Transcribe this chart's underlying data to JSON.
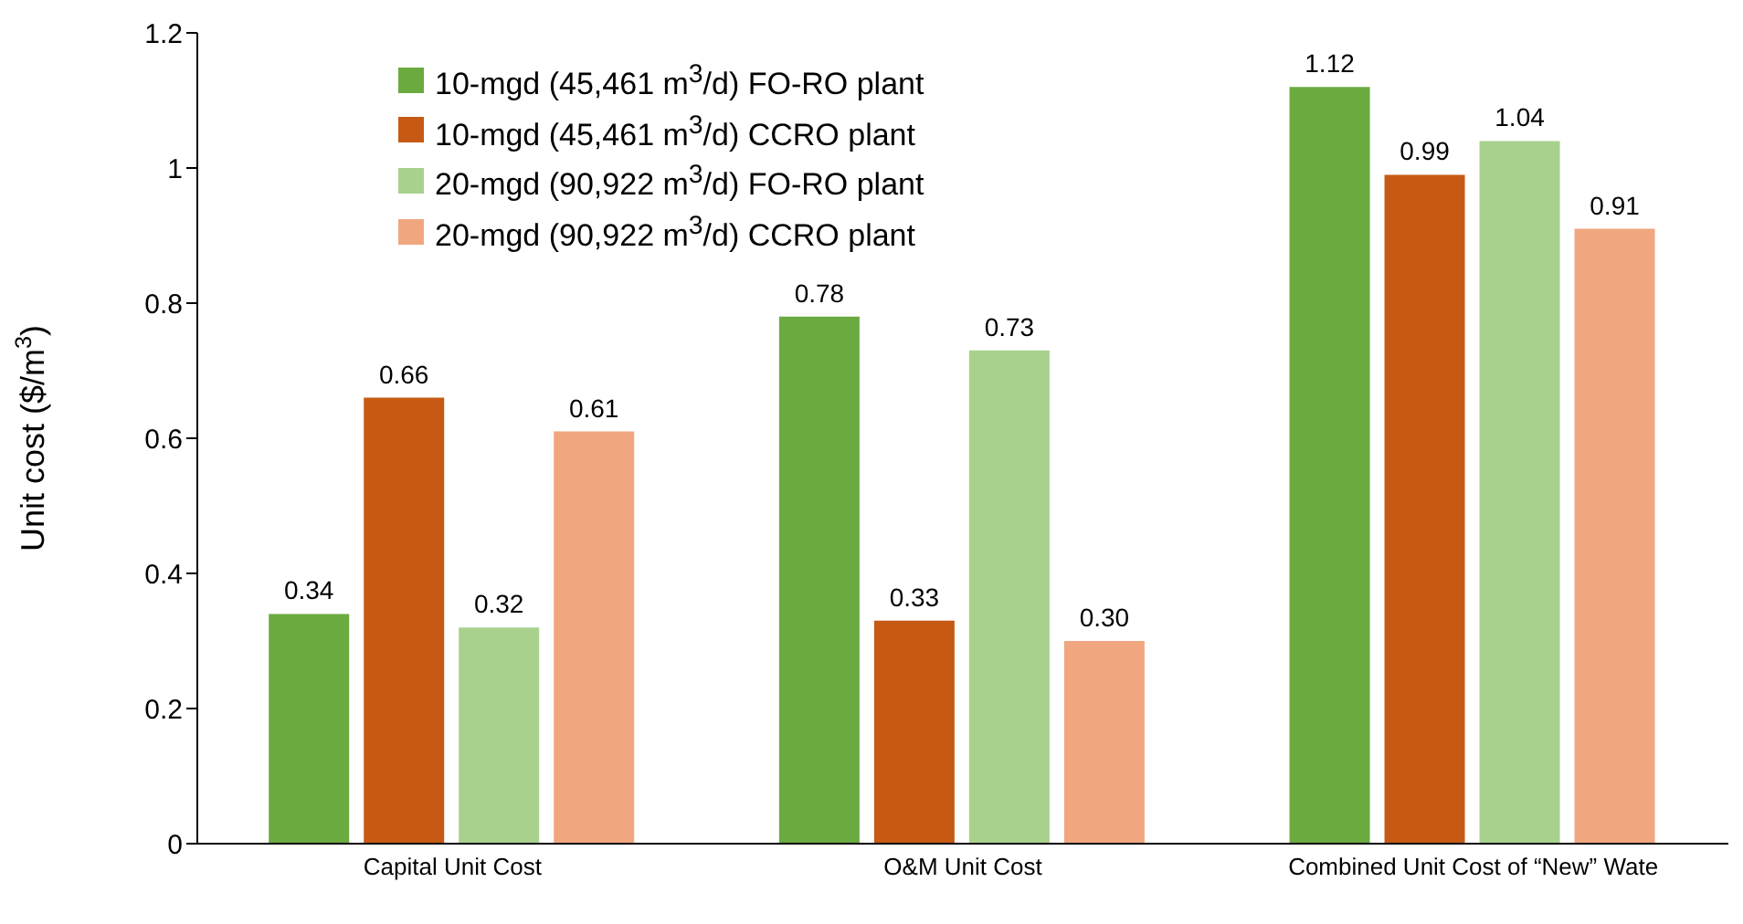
{
  "chart_data": {
    "type": "bar",
    "ylabel": "Unit cost ($/m$^{3}$)",
    "categories": [
      "Capital Unit Cost",
      "O&M Unit Cost",
      "Combined Unit Cost of “New” Wate"
    ],
    "series": [
      {
        "name": "10-mgd (45,461 m$^{3}$/d) FO-RO plant",
        "color": "#6aaa3f",
        "values": [
          0.34,
          0.78,
          1.12
        ],
        "value_labels": [
          "0.34",
          "0.78",
          "1.12"
        ]
      },
      {
        "name": "10-mgd (45,461 m$^{3}$/d) CCRO plant",
        "color": "#c65a14",
        "values": [
          0.66,
          0.33,
          0.99
        ],
        "value_labels": [
          "0.66",
          "0.33",
          "0.99"
        ]
      },
      {
        "name": "20-mgd (90,922 m$^{3}$/d) FO-RO plant",
        "color": "#a9d18e",
        "values": [
          0.32,
          0.73,
          1.04
        ],
        "value_labels": [
          "0.32",
          "0.73",
          "1.04"
        ]
      },
      {
        "name": "20-mgd (90,922 m$^{3}$/d) CCRO plant",
        "color": "#f0a780",
        "values": [
          0.61,
          0.3,
          0.91
        ],
        "value_labels": [
          "0.61",
          "0.30",
          "0.91"
        ]
      }
    ],
    "ylim": [
      0,
      1.2
    ],
    "yticks": [
      0,
      0.2,
      0.4,
      0.6,
      0.8,
      1,
      1.2
    ],
    "grid": false,
    "legend": "top left"
  }
}
